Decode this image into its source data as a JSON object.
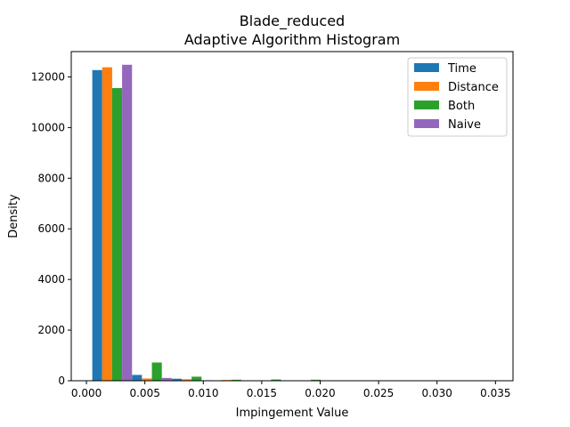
{
  "chart_data": {
    "type": "bar",
    "title": "Blade_reduced",
    "subtitle": "Adaptive Algorithm Histogram",
    "xlabel": "Impingement Value",
    "ylabel": "Density",
    "xlim": [
      -0.0013,
      0.0365
    ],
    "ylim": [
      0,
      13000
    ],
    "xticks": [
      "0.000",
      "0.005",
      "0.010",
      "0.015",
      "0.020",
      "0.025",
      "0.030",
      "0.035"
    ],
    "xtick_values": [
      0,
      0.005,
      0.01,
      0.015,
      0.02,
      0.025,
      0.03,
      0.035
    ],
    "yticks": [
      "0",
      "2000",
      "4000",
      "6000",
      "8000",
      "10000",
      "12000"
    ],
    "ytick_values": [
      0,
      2000,
      4000,
      6000,
      8000,
      10000,
      12000
    ],
    "bin_edges": [
      0.0005,
      0.0039,
      0.0073,
      0.0107,
      0.0141,
      0.0175,
      0.0209,
      0.0243,
      0.0277,
      0.0311,
      0.0345
    ],
    "legend_position": "top-right",
    "grid": false,
    "series": [
      {
        "name": "Time",
        "color": "#1f77b4",
        "values": [
          12270,
          230,
          80,
          10,
          5,
          2,
          0,
          0,
          0,
          0
        ]
      },
      {
        "name": "Distance",
        "color": "#ff7f0e",
        "values": [
          12380,
          90,
          60,
          30,
          5,
          2,
          0,
          0,
          0,
          0
        ]
      },
      {
        "name": "Both",
        "color": "#2ca02c",
        "values": [
          11560,
          720,
          160,
          40,
          50,
          40,
          0,
          0,
          0,
          0
        ]
      },
      {
        "name": "Naive",
        "color": "#9467bd",
        "values": [
          12480,
          110,
          20,
          5,
          2,
          0,
          0,
          0,
          0,
          0
        ]
      }
    ]
  }
}
